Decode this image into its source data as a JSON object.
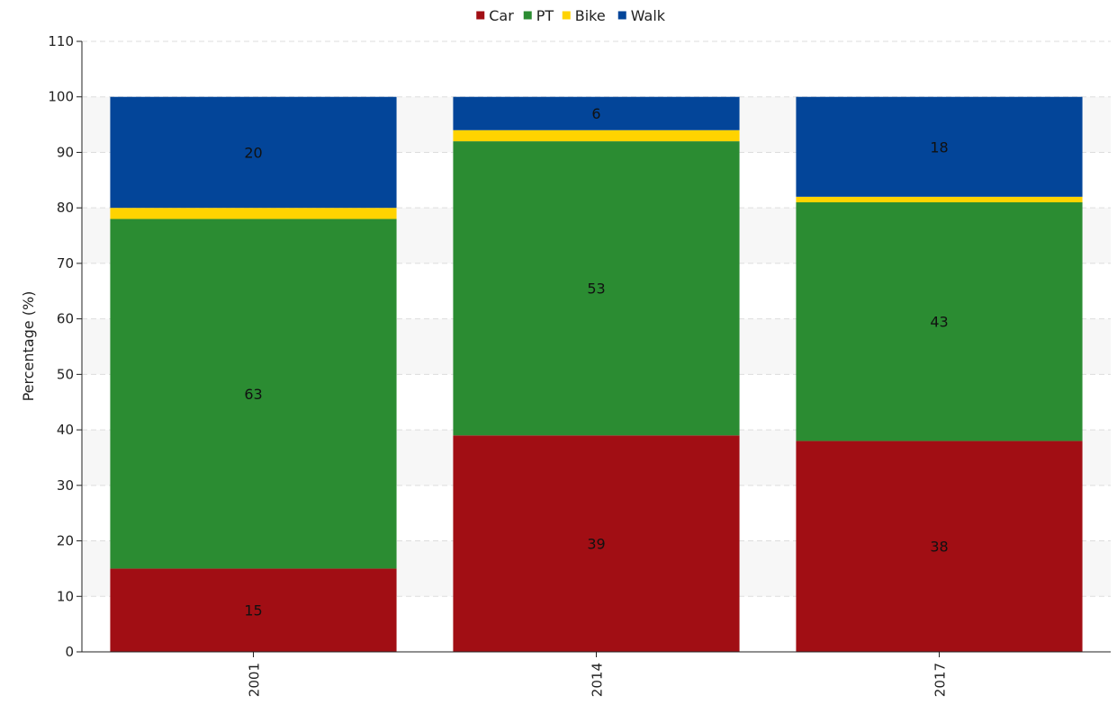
{
  "chart_data": {
    "type": "bar",
    "stacked": true,
    "categories": [
      "2001",
      "2014",
      "2017"
    ],
    "series": [
      {
        "name": "Car",
        "color": "#a10e14",
        "values": [
          15,
          39,
          38
        ],
        "labels": [
          "15",
          "39",
          "38"
        ]
      },
      {
        "name": "PT",
        "color": "#2b8c32",
        "values": [
          63,
          53,
          43
        ],
        "labels": [
          "63",
          "53",
          "43"
        ]
      },
      {
        "name": "Bike",
        "color": "#ffd300",
        "values": [
          2,
          2,
          1
        ],
        "labels": [
          "",
          "",
          ""
        ]
      },
      {
        "name": "Walk",
        "color": "#034599",
        "values": [
          20,
          6,
          18
        ],
        "labels": [
          "20",
          "6",
          "18"
        ]
      }
    ],
    "ylabel": "Percentage (%)",
    "ylim": [
      0,
      110
    ],
    "yticks": [
      "0",
      "10",
      "20",
      "30",
      "40",
      "50",
      "60",
      "70",
      "80",
      "90",
      "100",
      "110"
    ],
    "grid": true,
    "legend_position": "top-center"
  }
}
